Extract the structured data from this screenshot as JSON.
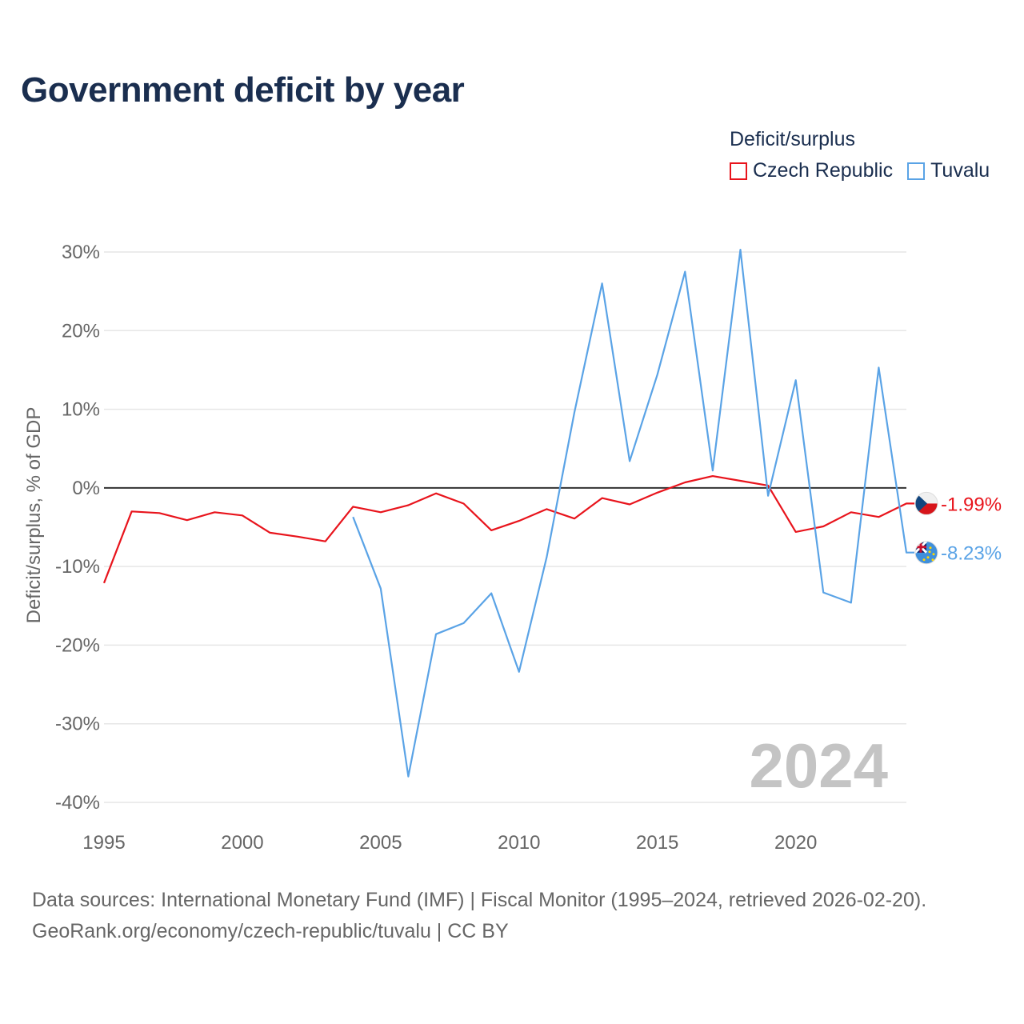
{
  "title": "Government deficit by year",
  "legend": {
    "title": "Deficit/surplus",
    "items": [
      {
        "label": "Czech Republic",
        "color": "#e8141c"
      },
      {
        "label": "Tuvalu",
        "color": "#5aa3e6"
      }
    ]
  },
  "chart_data": {
    "type": "line",
    "title": "Government deficit by year",
    "xlabel": "",
    "ylabel": "Deficit/surplus, % of GDP",
    "xlim": [
      1995,
      2024
    ],
    "ylim": [
      -40,
      30
    ],
    "x_ticks": [
      1995,
      2000,
      2005,
      2010,
      2015,
      2020
    ],
    "x_tick_labels": [
      "1995",
      "2000",
      "2005",
      "2010",
      "2015",
      "2020"
    ],
    "y_ticks": [
      30,
      20,
      10,
      0,
      -10,
      -20,
      -30,
      -40
    ],
    "y_tick_labels": [
      "30%",
      "20%",
      "10%",
      "0%",
      "-10%",
      "-20%",
      "-30%",
      "-40%"
    ],
    "grid": true,
    "year_watermark": "2024",
    "series": [
      {
        "name": "Czech Republic",
        "color": "#e8141c",
        "x": [
          1995,
          1996,
          1997,
          1998,
          1999,
          2000,
          2001,
          2002,
          2003,
          2004,
          2005,
          2006,
          2007,
          2008,
          2009,
          2010,
          2011,
          2012,
          2013,
          2014,
          2015,
          2016,
          2017,
          2018,
          2019,
          2020,
          2021,
          2022,
          2023,
          2024
        ],
        "values": [
          -12.1,
          -3.0,
          -3.2,
          -4.1,
          -3.1,
          -3.5,
          -5.7,
          -6.2,
          -6.8,
          -2.4,
          -3.1,
          -2.2,
          -0.7,
          -2.0,
          -5.4,
          -4.2,
          -2.7,
          -3.9,
          -1.3,
          -2.1,
          -0.6,
          0.7,
          1.5,
          0.9,
          0.3,
          -5.6,
          -4.9,
          -3.1,
          -3.7,
          -1.99
        ],
        "end_label": "-1.99%"
      },
      {
        "name": "Tuvalu",
        "color": "#5aa3e6",
        "x": [
          2004,
          2005,
          2006,
          2007,
          2008,
          2009,
          2010,
          2011,
          2012,
          2013,
          2014,
          2015,
          2016,
          2017,
          2018,
          2019,
          2020,
          2021,
          2022,
          2023,
          2024
        ],
        "values": [
          -3.7,
          -12.8,
          -36.7,
          -18.6,
          -17.2,
          -13.4,
          -23.4,
          -8.8,
          9.6,
          26.0,
          3.4,
          14.4,
          27.5,
          2.2,
          30.3,
          -1.0,
          13.7,
          -13.3,
          -14.6,
          15.3,
          -8.23
        ],
        "end_label": "-8.23%"
      }
    ]
  },
  "footer": {
    "line1": "Data sources: International Monetary Fund (IMF) | Fiscal Monitor (1995–2024, retrieved 2026-02-20).",
    "line2": "GeoRank.org/economy/czech-republic/tuvalu | CC BY"
  }
}
